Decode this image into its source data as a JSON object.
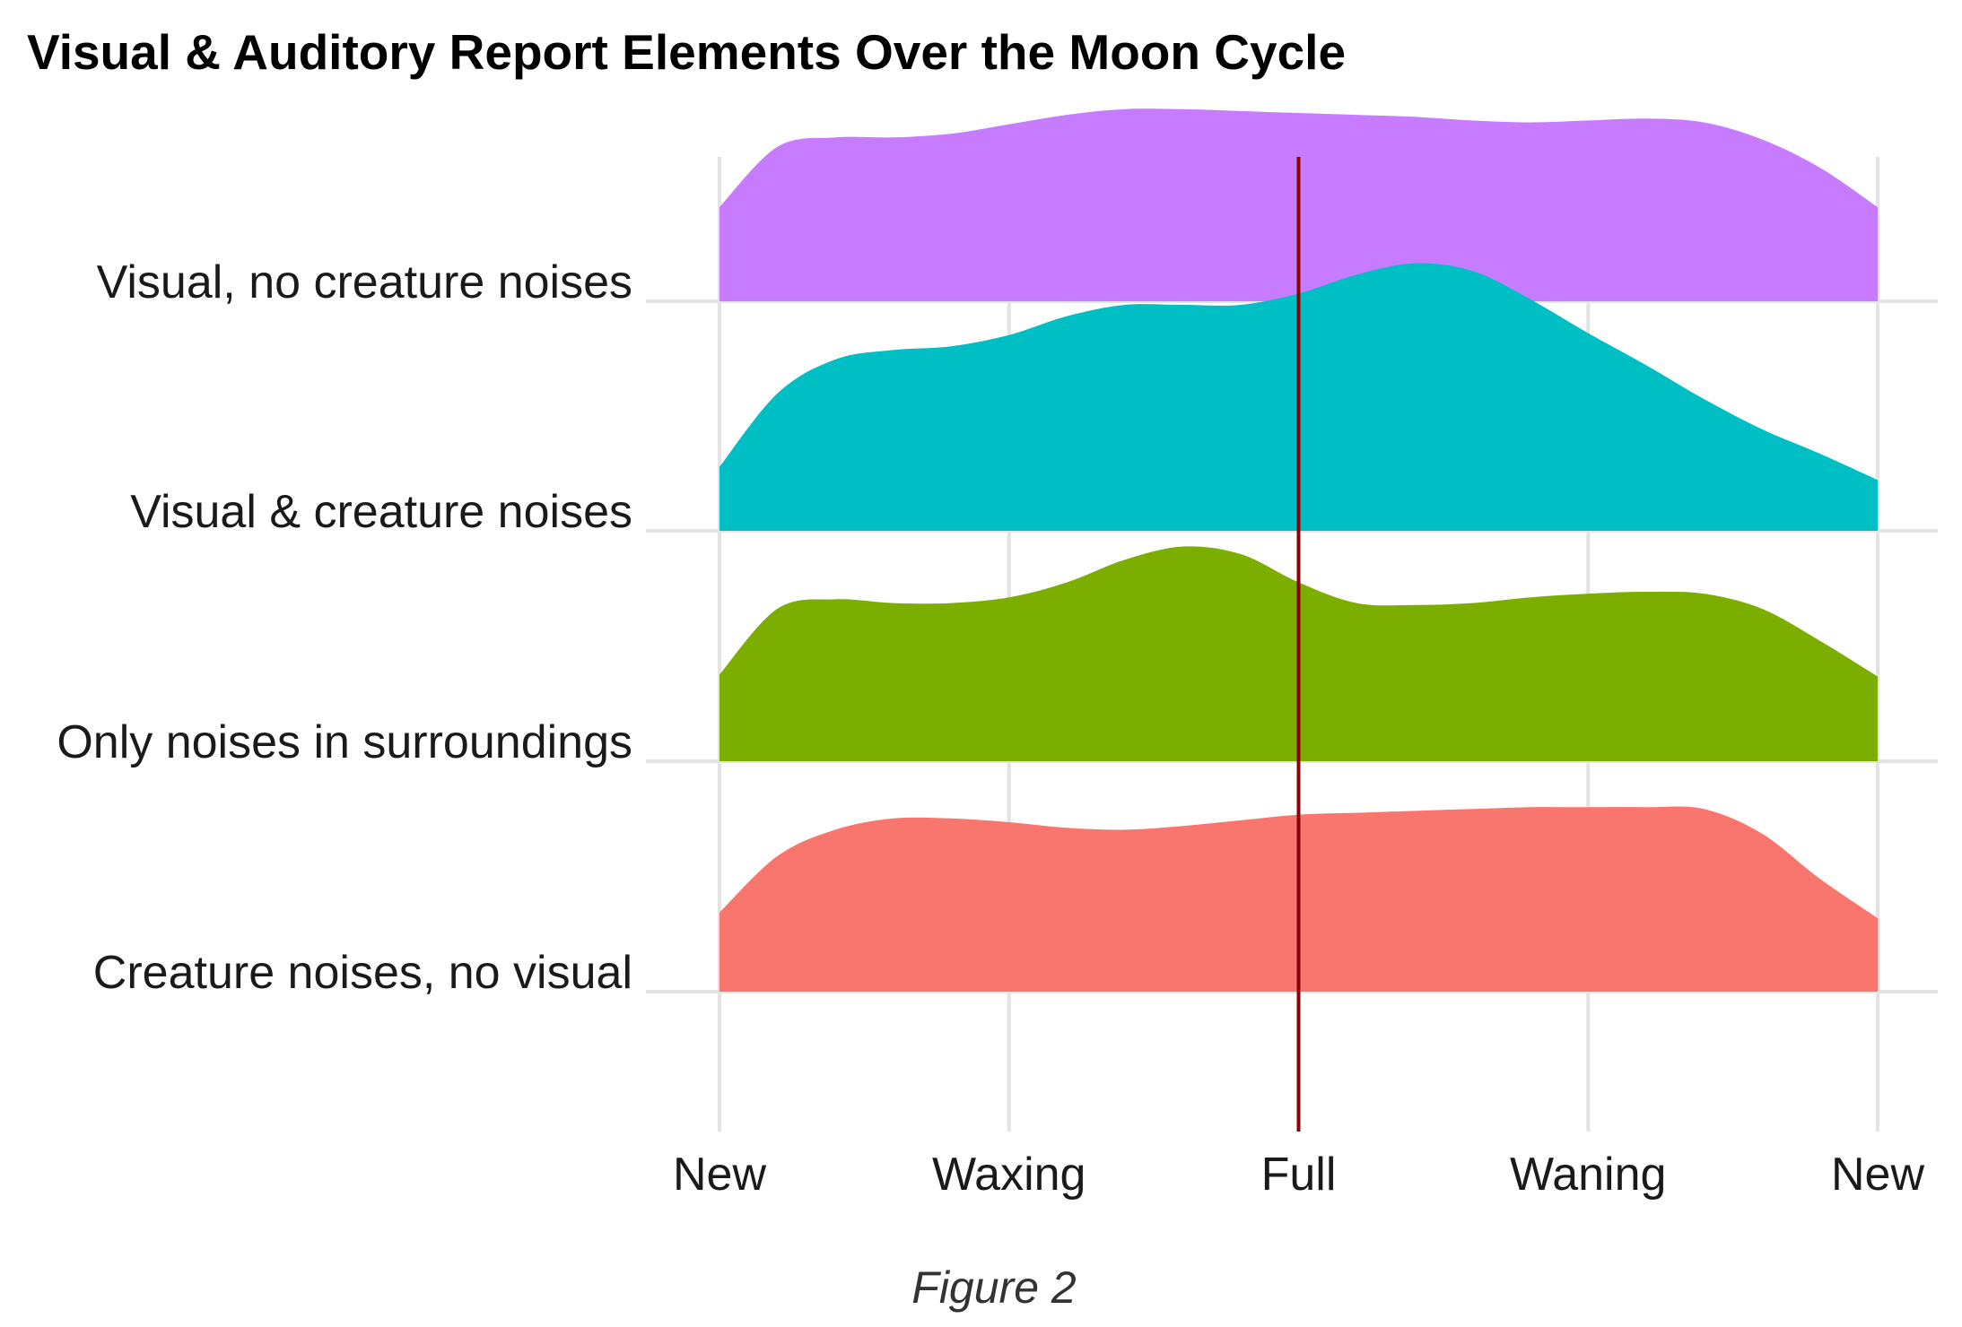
{
  "chart_data": {
    "type": "area",
    "subtype": "ridgeline",
    "title": "Visual & Auditory Report Elements Over the Moon Cycle",
    "caption": "Figure 2",
    "x_ticks": [
      "New",
      "Waxing",
      "Full",
      "Waning",
      "New"
    ],
    "x_tick_values": [
      0,
      0.25,
      0.5,
      0.75,
      1.0
    ],
    "xlim": [
      0,
      1.0
    ],
    "reference_line": {
      "x": 0.5,
      "label": "Full",
      "color": "#8b0000"
    },
    "grid": true,
    "legend": "none",
    "series": [
      {
        "name": "Creature noises, no visual",
        "color": "#f8766d",
        "x": [
          0,
          0.05,
          0.1,
          0.15,
          0.2,
          0.25,
          0.3,
          0.35,
          0.4,
          0.45,
          0.5,
          0.55,
          0.6,
          0.65,
          0.7,
          0.75,
          0.8,
          0.85,
          0.9,
          0.95,
          1.0
        ],
        "y": [
          0.42,
          0.72,
          0.86,
          0.92,
          0.92,
          0.9,
          0.87,
          0.86,
          0.88,
          0.91,
          0.94,
          0.95,
          0.96,
          0.97,
          0.98,
          0.98,
          0.98,
          0.97,
          0.84,
          0.6,
          0.39
        ]
      },
      {
        "name": "Only noises in surroundings",
        "color": "#7cae00",
        "x": [
          0,
          0.05,
          0.1,
          0.15,
          0.2,
          0.25,
          0.3,
          0.35,
          0.4,
          0.45,
          0.5,
          0.55,
          0.6,
          0.65,
          0.7,
          0.75,
          0.8,
          0.85,
          0.9,
          0.95,
          1.0
        ],
        "y": [
          0.46,
          0.81,
          0.86,
          0.84,
          0.84,
          0.87,
          0.95,
          1.07,
          1.14,
          1.1,
          0.95,
          0.84,
          0.83,
          0.84,
          0.87,
          0.89,
          0.9,
          0.89,
          0.81,
          0.64,
          0.45
        ]
      },
      {
        "name": "Visual & creature noises",
        "color": "#00bfc4",
        "x": [
          0,
          0.05,
          0.1,
          0.15,
          0.2,
          0.25,
          0.3,
          0.35,
          0.4,
          0.45,
          0.5,
          0.55,
          0.6,
          0.65,
          0.7,
          0.75,
          0.8,
          0.85,
          0.9,
          0.95,
          1.0
        ],
        "y": [
          0.34,
          0.73,
          0.91,
          0.96,
          0.98,
          1.04,
          1.14,
          1.2,
          1.2,
          1.2,
          1.26,
          1.36,
          1.42,
          1.38,
          1.23,
          1.05,
          0.88,
          0.7,
          0.54,
          0.41,
          0.27
        ]
      },
      {
        "name": "Visual, no creature noises",
        "color": "#c77cff",
        "x": [
          0,
          0.05,
          0.1,
          0.15,
          0.2,
          0.25,
          0.3,
          0.35,
          0.4,
          0.45,
          0.5,
          0.55,
          0.6,
          0.65,
          0.7,
          0.75,
          0.8,
          0.85,
          0.9,
          0.95,
          1.0
        ],
        "y": [
          0.5,
          0.82,
          0.87,
          0.87,
          0.89,
          0.94,
          0.99,
          1.02,
          1.02,
          1.01,
          1.0,
          0.99,
          0.98,
          0.96,
          0.95,
          0.96,
          0.97,
          0.95,
          0.86,
          0.71,
          0.5
        ]
      }
    ]
  }
}
